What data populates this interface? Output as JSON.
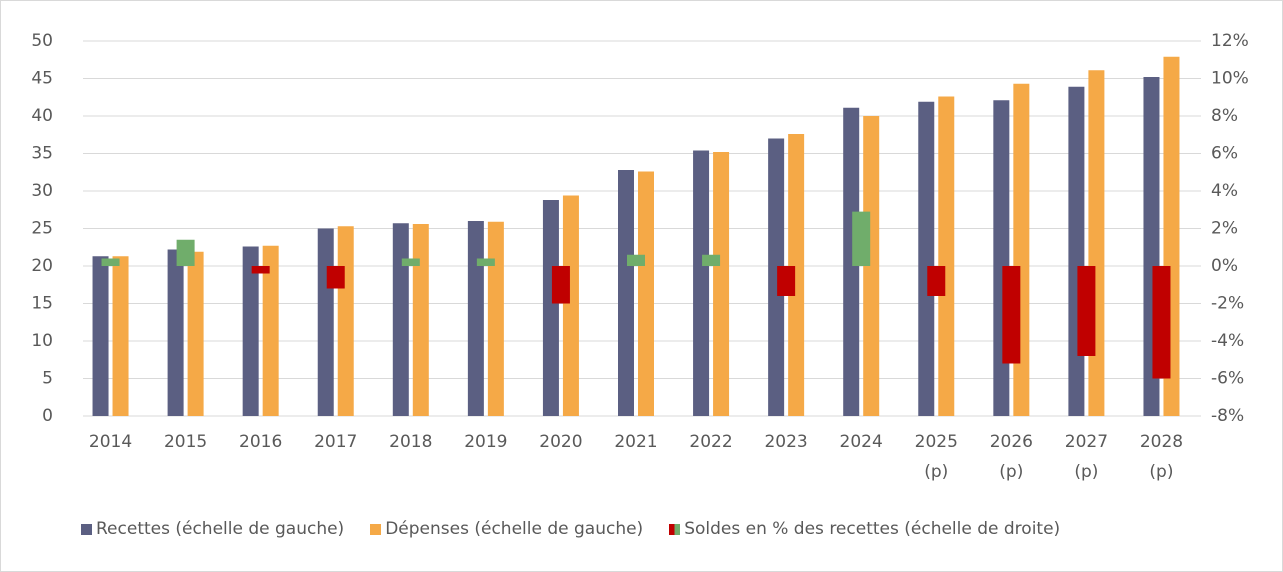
{
  "chart_data": {
    "type": "bar",
    "categories": [
      "2014",
      "2015",
      "2016",
      "2017",
      "2018",
      "2019",
      "2020",
      "2021",
      "2022",
      "2023",
      "2024",
      "2025 (p)",
      "2026 (p)",
      "2027 (p)",
      "2028 (p)"
    ],
    "series": [
      {
        "name": "Recettes (échelle de gauche)",
        "color": "#5b5f82",
        "values": [
          21.3,
          22.2,
          22.6,
          25.0,
          25.7,
          26.0,
          28.8,
          32.8,
          35.4,
          37.0,
          41.1,
          41.9,
          42.1,
          43.9,
          45.2
        ]
      },
      {
        "name": "Dépenses (échelle de gauche)",
        "color": "#f5a947",
        "values": [
          21.3,
          21.9,
          22.7,
          25.3,
          25.6,
          25.9,
          29.4,
          32.6,
          35.2,
          37.6,
          40.0,
          42.6,
          44.3,
          46.1,
          47.9
        ]
      },
      {
        "name": "Soldes en % des recettes (échelle de droite)",
        "color": "#c00000",
        "positive_color": "#70ad6b",
        "axis": "y2",
        "values": [
          0.4,
          1.4,
          -0.4,
          -1.2,
          0.4,
          0.4,
          -2.0,
          0.6,
          0.6,
          -1.6,
          2.9,
          -1.6,
          -5.2,
          -4.8,
          -6.0
        ]
      }
    ],
    "ylim": [
      0,
      50
    ],
    "yticks": [
      0,
      5,
      10,
      15,
      20,
      25,
      30,
      35,
      40,
      45,
      50
    ],
    "y2lim": [
      -8,
      12
    ],
    "y2ticks": [
      {
        "value": -8,
        "label": "-8%"
      },
      {
        "value": -6,
        "label": "-6%"
      },
      {
        "value": -4,
        "label": "-4%"
      },
      {
        "value": -2,
        "label": "-2%"
      },
      {
        "value": 0,
        "label": "0%"
      },
      {
        "value": 2,
        "label": "2%"
      },
      {
        "value": 4,
        "label": "4%"
      },
      {
        "value": 6,
        "label": "6%"
      },
      {
        "value": 8,
        "label": "8%"
      },
      {
        "value": 10,
        "label": "10%"
      },
      {
        "value": 12,
        "label": "12%"
      }
    ],
    "grid": true,
    "legend": "bottom"
  }
}
